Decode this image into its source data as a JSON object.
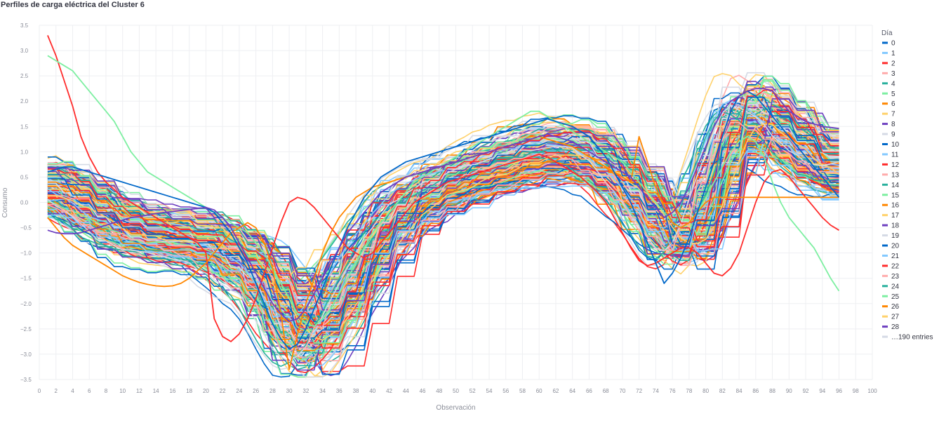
{
  "chart_data": {
    "type": "line",
    "title": "Perfiles de carga eléctrica del Cluster 6",
    "xlabel": "Observación",
    "ylabel": "Consumo",
    "xlim": [
      0,
      100
    ],
    "ylim": [
      -3.5,
      3.5
    ],
    "x_ticks": [
      "0",
      "2",
      "4",
      "6",
      "8",
      "10",
      "12",
      "14",
      "16",
      "18",
      "20",
      "22",
      "24",
      "26",
      "28",
      "30",
      "32",
      "34",
      "36",
      "38",
      "40",
      "42",
      "44",
      "46",
      "48",
      "50",
      "52",
      "54",
      "56",
      "58",
      "60",
      "62",
      "64",
      "66",
      "68",
      "70",
      "72",
      "74",
      "76",
      "78",
      "80",
      "82",
      "84",
      "86",
      "88",
      "90",
      "92",
      "94",
      "96",
      "98",
      "100"
    ],
    "y_ticks": [
      "3.5",
      "3.0",
      "2.5",
      "2.0",
      "1.5",
      "1.0",
      "0.5",
      "0.0",
      "−0.5",
      "−1.0",
      "−1.5",
      "−2.0",
      "−2.5",
      "−3.0",
      "−3.5"
    ],
    "grid": true,
    "legend_title": "Día",
    "legend_position": "right",
    "legend_entries": [
      "0",
      "1",
      "2",
      "3",
      "4",
      "5",
      "6",
      "7",
      "8",
      "9",
      "10",
      "11",
      "12",
      "13",
      "14",
      "15",
      "16",
      "17",
      "18",
      "19",
      "20",
      "21",
      "22",
      "23",
      "24",
      "25",
      "26",
      "27",
      "28"
    ],
    "legend_more": "…190 entries",
    "palette": [
      "#0068c9",
      "#83c9ff",
      "#ff2b2b",
      "#ffabab",
      "#29b09d",
      "#7defa1",
      "#ff8700",
      "#ffd16a",
      "#6d3fc0",
      "#d5dae5"
    ],
    "series_count": 219,
    "x": [
      1,
      2,
      3,
      4,
      5,
      6,
      7,
      8,
      9,
      10,
      11,
      12,
      13,
      14,
      15,
      16,
      17,
      18,
      19,
      20,
      21,
      22,
      23,
      24,
      25,
      26,
      27,
      28,
      29,
      30,
      31,
      32,
      33,
      34,
      35,
      36,
      37,
      38,
      39,
      40,
      41,
      42,
      43,
      44,
      45,
      46,
      47,
      48,
      49,
      50,
      51,
      52,
      53,
      54,
      55,
      56,
      57,
      58,
      59,
      60,
      61,
      62,
      63,
      64,
      65,
      66,
      67,
      68,
      69,
      70,
      71,
      72,
      73,
      74,
      75,
      76,
      77,
      78,
      79,
      80,
      81,
      82,
      83,
      84,
      85,
      86,
      87,
      88,
      89,
      90,
      91,
      92,
      93,
      94,
      95,
      96
    ],
    "base_profile": [
      0.35,
      0.25,
      0.15,
      0.05,
      -0.05,
      -0.15,
      -0.25,
      -0.35,
      -0.45,
      -0.5,
      -0.55,
      -0.6,
      -0.62,
      -0.65,
      -0.68,
      -0.7,
      -0.72,
      -0.75,
      -0.78,
      -0.8,
      -0.9,
      -1.0,
      -1.1,
      -1.2,
      -1.3,
      -1.4,
      -1.6,
      -1.85,
      -2.1,
      -2.3,
      -2.45,
      -2.5,
      -2.45,
      -2.3,
      -2.1,
      -1.85,
      -1.6,
      -1.35,
      -1.1,
      -0.85,
      -0.6,
      -0.4,
      -0.2,
      -0.05,
      0.05,
      0.15,
      0.25,
      0.32,
      0.38,
      0.44,
      0.5,
      0.56,
      0.62,
      0.68,
      0.74,
      0.8,
      0.84,
      0.88,
      0.92,
      0.95,
      0.98,
      1.0,
      1.0,
      0.98,
      0.95,
      0.9,
      0.8,
      0.7,
      0.55,
      0.4,
      0.25,
      0.1,
      -0.1,
      -0.3,
      -0.5,
      -0.65,
      -0.7,
      -0.6,
      -0.3,
      0.1,
      0.5,
      0.9,
      1.3,
      1.6,
      1.7,
      1.65,
      1.55,
      1.45,
      1.35,
      1.2,
      1.05,
      0.95,
      0.85,
      0.75,
      0.7,
      0.65
    ],
    "highlight_series": [
      {
        "values": [
          3.3,
          2.9,
          2.4,
          1.9,
          1.3,
          0.9,
          0.6,
          0.4,
          0.25,
          0.1,
          0.0,
          -0.1,
          -0.2,
          -0.3,
          -0.4,
          -0.5,
          -0.6,
          -0.7,
          -0.8,
          -1.0,
          -2.3,
          -2.65,
          -2.75,
          -2.6,
          -2.3,
          -1.9,
          -1.4,
          -0.9,
          -0.4,
          0.0,
          0.1,
          0.05,
          -0.1,
          -0.3,
          -0.5,
          -0.7,
          -0.9,
          -1.0,
          -1.1,
          -1.0,
          -0.8,
          -0.6,
          -0.4,
          -0.2,
          0.0,
          0.1,
          0.2,
          0.3,
          0.4,
          0.45,
          0.5,
          0.55,
          0.6,
          0.65,
          0.7,
          0.75,
          0.8,
          0.85,
          0.9,
          0.95,
          0.9,
          0.8,
          0.7,
          0.6,
          0.5,
          0.35,
          0.2,
          0.0,
          -0.3,
          -0.6,
          -0.9,
          -1.15,
          -1.25,
          -1.2,
          -1.1,
          -1.0,
          -0.9,
          -0.9,
          -1.0,
          -1.2,
          -1.4,
          -1.45,
          -1.3,
          -1.0,
          -0.5,
          0.0,
          0.4,
          0.6,
          0.65,
          0.5,
          0.3,
          0.1,
          -0.1,
          -0.3,
          -0.45,
          -0.55
        ],
        "color": "#ff2b2b"
      },
      {
        "values": [
          2.9,
          2.8,
          2.7,
          2.6,
          2.4,
          2.2,
          2.0,
          1.8,
          1.6,
          1.3,
          1.0,
          0.8,
          0.6,
          0.5,
          0.4,
          0.3,
          0.2,
          0.1,
          0.0,
          -0.1,
          -0.2,
          -0.3,
          -0.4,
          -0.5,
          -0.6,
          -0.8,
          -1.0,
          -1.3,
          -1.6,
          -1.9,
          -2.2,
          -2.4,
          -2.45,
          -2.3,
          -2.1,
          -1.8,
          -1.5,
          -1.2,
          -0.9,
          -0.6,
          -0.4,
          -0.2,
          0.0,
          0.2,
          0.4,
          0.5,
          0.6,
          0.7,
          0.8,
          0.9,
          1.0,
          1.1,
          1.2,
          1.3,
          1.4,
          1.5,
          1.6,
          1.7,
          1.8,
          1.8,
          1.7,
          1.6,
          1.5,
          1.4,
          1.3,
          1.2,
          1.1,
          1.0,
          0.9,
          0.8,
          0.6,
          0.4,
          0.2,
          0.0,
          -0.2,
          -0.4,
          -0.5,
          -0.4,
          -0.2,
          0.1,
          0.4,
          0.7,
          1.0,
          1.2,
          1.3,
          1.2,
          0.9,
          0.4,
          0.0,
          -0.3,
          -0.5,
          -0.7,
          -0.9,
          -1.2,
          -1.5,
          -1.75
        ],
        "color": "#7defa1"
      },
      {
        "values": [
          -0.3,
          -0.5,
          -0.7,
          -0.85,
          -0.95,
          -1.05,
          -1.15,
          -1.25,
          -1.35,
          -1.45,
          -1.52,
          -1.58,
          -1.62,
          -1.65,
          -1.66,
          -1.65,
          -1.6,
          -1.5,
          -1.35,
          -1.2,
          -1.0,
          -0.8,
          -0.6,
          -0.5,
          -0.4,
          -0.5,
          -0.8,
          -1.3,
          -2.2,
          -3.3,
          -2.6,
          -2.0,
          -1.5,
          -1.0,
          -0.6,
          -0.3,
          -0.1,
          0.1,
          0.2,
          0.3,
          0.35,
          0.4,
          0.45,
          0.5,
          0.55,
          0.6,
          0.65,
          0.7,
          0.75,
          0.8,
          0.85,
          0.9,
          0.95,
          1.0,
          1.05,
          1.1,
          1.15,
          1.2,
          1.25,
          1.3,
          1.25,
          1.2,
          1.15,
          1.1,
          1.0,
          0.9,
          0.8,
          0.7,
          0.6,
          0.5,
          0.4,
          1.3,
          0.8,
          0.3,
          -0.1,
          -0.4,
          -0.5,
          -0.4,
          -0.2,
          0.0,
          0.1,
          0.1,
          0.1,
          0.1,
          0.1,
          0.1,
          0.1,
          0.1,
          0.1,
          0.1,
          0.1,
          0.1,
          0.1,
          0.1,
          0.1,
          0.1
        ],
        "color": "#ff8700"
      },
      {
        "values": [
          0.6,
          0.65,
          0.7,
          0.7,
          0.65,
          0.6,
          0.55,
          0.5,
          0.45,
          0.4,
          0.35,
          0.3,
          0.25,
          0.2,
          0.15,
          0.1,
          0.05,
          0.0,
          -0.05,
          -0.1,
          -0.2,
          -0.4,
          -0.6,
          -0.9,
          -1.2,
          -1.6,
          -2.0,
          -2.4,
          -2.7,
          -2.9,
          -2.8,
          -2.5,
          -2.1,
          -1.7,
          -1.3,
          -0.9,
          -0.5,
          -0.2,
          0.1,
          0.3,
          0.5,
          0.6,
          0.7,
          0.8,
          0.85,
          0.9,
          0.95,
          1.0,
          1.05,
          1.1,
          1.15,
          1.2,
          1.25,
          1.3,
          1.35,
          1.4,
          1.45,
          1.5,
          1.55,
          1.6,
          1.65,
          1.6,
          1.55,
          1.5,
          1.4,
          1.3,
          1.1,
          0.9,
          0.6,
          0.3,
          0.0,
          -0.4,
          -0.8,
          -1.2,
          -1.6,
          -1.4,
          -1.1,
          -0.7,
          -0.2,
          0.3,
          0.8,
          1.3,
          1.8,
          2.1,
          2.2,
          2.1,
          1.9,
          1.7,
          1.5,
          1.3,
          1.1,
          0.9,
          0.7,
          0.5,
          0.3,
          0.1
        ],
        "color": "#0068c9"
      },
      {
        "values": [
          -0.55,
          -0.6,
          -0.62,
          -0.62,
          -0.6,
          -0.55,
          -0.5,
          -0.45,
          -0.4,
          -0.35,
          -0.3,
          -0.28,
          -0.25,
          -0.22,
          -0.2,
          -0.18,
          -0.16,
          -0.14,
          -0.12,
          -0.1,
          -0.15,
          -0.3,
          -0.5,
          -0.8,
          -1.1,
          -1.4,
          -1.7,
          -2.0,
          -2.2,
          -2.35,
          -2.3,
          -2.1,
          -1.8,
          -1.5,
          -1.2,
          -0.9,
          -0.6,
          -0.4,
          -0.2,
          0.0,
          0.2,
          0.3,
          0.4,
          0.5,
          0.55,
          0.6,
          0.65,
          0.7,
          0.75,
          0.8,
          0.85,
          0.9,
          0.95,
          1.0,
          1.05,
          1.1,
          1.15,
          1.2,
          1.25,
          1.3,
          1.35,
          1.3,
          1.25,
          1.2,
          1.1,
          1.0,
          0.9,
          0.8,
          0.7,
          0.6,
          0.5,
          0.3,
          0.1,
          -0.1,
          -0.3,
          -0.2,
          0.0,
          0.3,
          0.7,
          1.1,
          1.5,
          1.8,
          2.0,
          2.1,
          2.2,
          2.25,
          2.25,
          2.2,
          2.0,
          1.8,
          1.7,
          1.6,
          1.55,
          1.5,
          1.48,
          1.46
        ],
        "color": "#6d3fc0"
      }
    ]
  }
}
